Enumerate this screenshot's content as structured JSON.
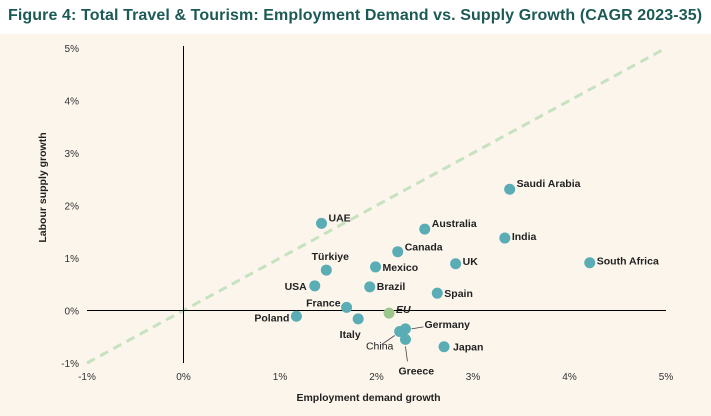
{
  "title": "Figure 4: Total Travel & Tourism: Employment Demand vs. Supply Growth (CAGR 2023-35)",
  "chart_data": {
    "type": "scatter",
    "title": "Figure 4: Total Travel & Tourism: Employment Demand vs. Supply Growth (CAGR 2023-35)",
    "xlabel": "Employment demand growth",
    "ylabel": "Labour supply growth",
    "xlim": [
      -1,
      5
    ],
    "ylim": [
      -1,
      5
    ],
    "x_ticks": [
      -1,
      0,
      1,
      2,
      3,
      4,
      5
    ],
    "y_ticks": [
      -1,
      0,
      1,
      2,
      3,
      4,
      5
    ],
    "x_tick_labels": [
      "-1%",
      "0%",
      "1%",
      "2%",
      "3%",
      "4%",
      "5%"
    ],
    "y_tick_labels": [
      "-1%",
      "0%",
      "1%",
      "2%",
      "3%",
      "4%",
      "5%"
    ],
    "reference_line": {
      "style": "dashed",
      "slope": 1,
      "intercept": 0,
      "color": "#c6e2bf"
    },
    "colors": {
      "point": "#5aadb4",
      "highlight": "#9cc68c",
      "axis": "#000000",
      "title": "#1d5a55"
    },
    "points": [
      {
        "label": "Saudi Arabia",
        "x": 3.38,
        "y": 2.31,
        "style": "bold"
      },
      {
        "label": "UAE",
        "x": 1.43,
        "y": 1.66,
        "style": "bold"
      },
      {
        "label": "Australia",
        "x": 2.5,
        "y": 1.55,
        "style": "bold"
      },
      {
        "label": "India",
        "x": 3.33,
        "y": 1.38,
        "style": "bold"
      },
      {
        "label": "Canada",
        "x": 2.22,
        "y": 1.12,
        "style": "bold"
      },
      {
        "label": "South Africa",
        "x": 4.21,
        "y": 0.91,
        "style": "bold"
      },
      {
        "label": "UK",
        "x": 2.82,
        "y": 0.89,
        "style": "bold"
      },
      {
        "label": "Mexico",
        "x": 1.99,
        "y": 0.83,
        "style": "bold"
      },
      {
        "label": "Türkiye",
        "x": 1.48,
        "y": 0.77,
        "style": "bold"
      },
      {
        "label": "USA",
        "x": 1.36,
        "y": 0.47,
        "style": "bold"
      },
      {
        "label": "Brazil",
        "x": 1.93,
        "y": 0.45,
        "style": "bold"
      },
      {
        "label": "Spain",
        "x": 2.63,
        "y": 0.33,
        "style": "bold"
      },
      {
        "label": "France",
        "x": 1.69,
        "y": 0.06,
        "style": "bold"
      },
      {
        "label": "EU",
        "x": 2.13,
        "y": -0.05,
        "style": "eu"
      },
      {
        "label": "Poland",
        "x": 1.17,
        "y": -0.11,
        "style": "bold"
      },
      {
        "label": "Italy",
        "x": 1.81,
        "y": -0.16,
        "style": "bold"
      },
      {
        "label": "Germany",
        "x": 2.3,
        "y": -0.35,
        "style": "bold"
      },
      {
        "label": "China",
        "x": 2.24,
        "y": -0.4,
        "style": "plain"
      },
      {
        "label": "Greece",
        "x": 2.3,
        "y": -0.55,
        "style": "bold"
      },
      {
        "label": "Japan",
        "x": 2.7,
        "y": -0.69,
        "style": "bold"
      }
    ]
  }
}
